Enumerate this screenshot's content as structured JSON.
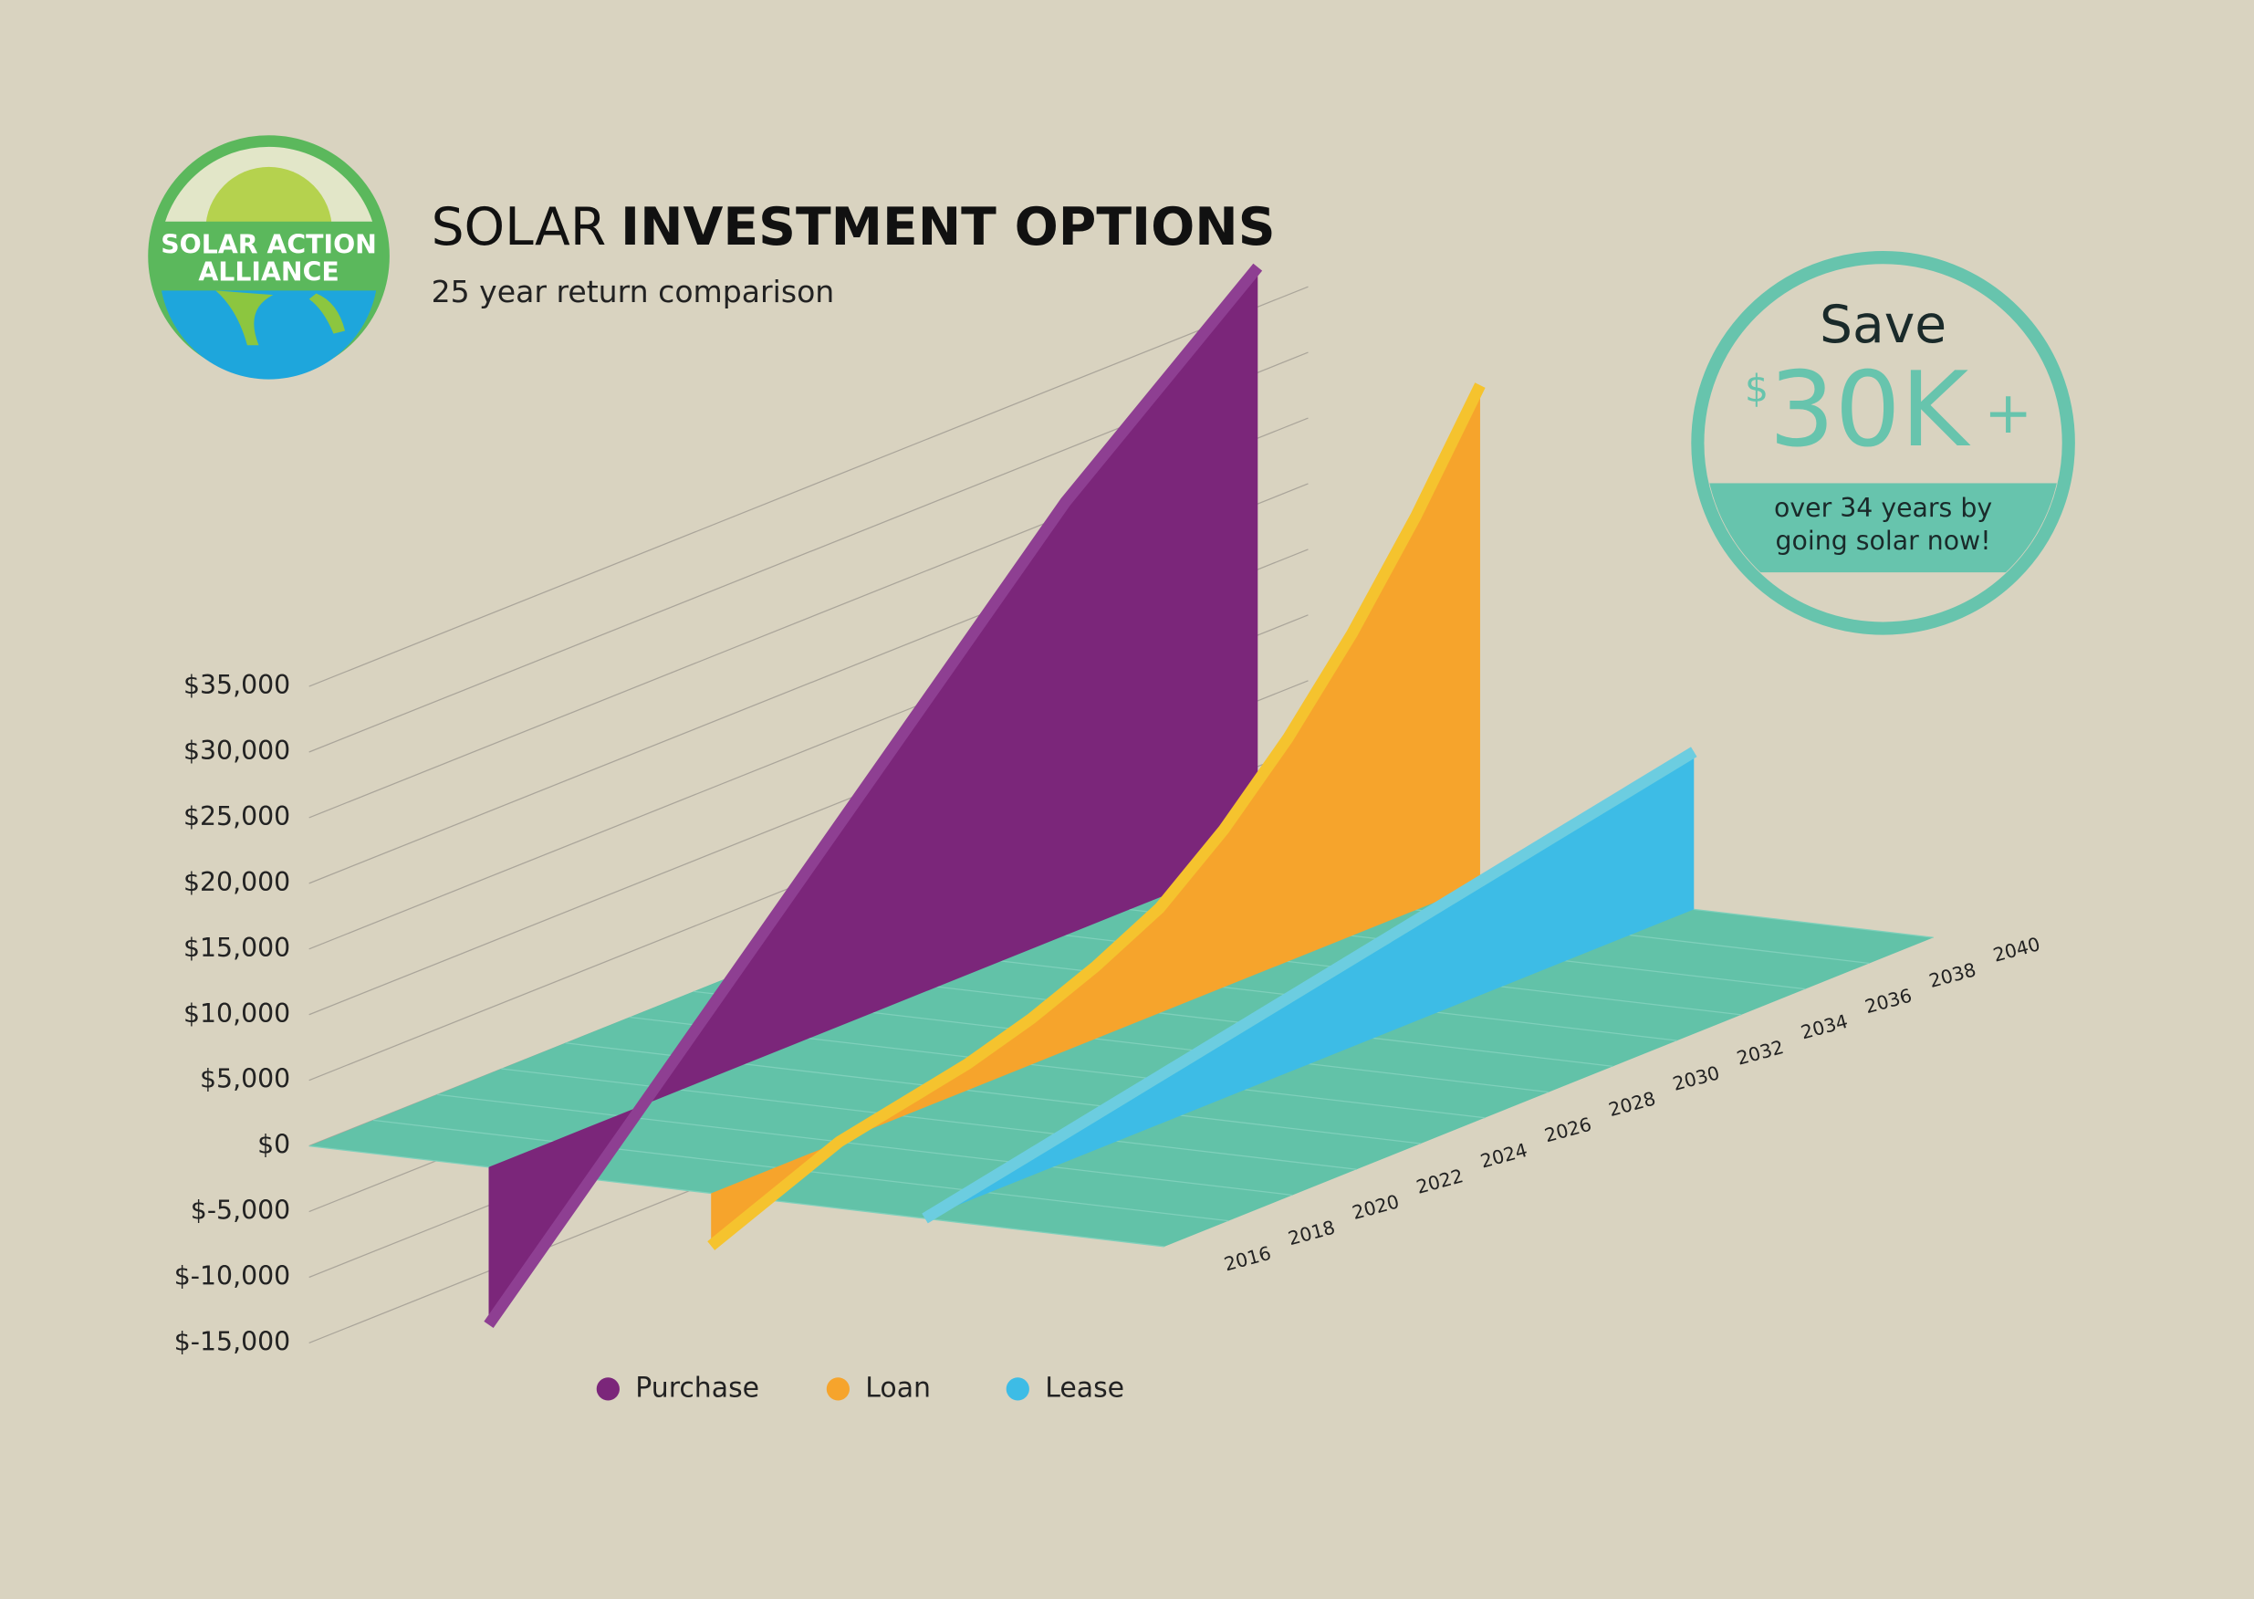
{
  "logo": {
    "lines": [
      "SOLAR ACTION",
      "ALLIANCE"
    ]
  },
  "chart_data": {
    "type": "area3d",
    "title_light": "SOLAR",
    "title": "INVESTMENT OPTIONS",
    "subtitle": "25 year return comparison",
    "x": [
      2016,
      2018,
      2020,
      2022,
      2024,
      2026,
      2028,
      2030,
      2032,
      2034,
      2036,
      2038,
      2040
    ],
    "xlim": [
      2016,
      2040
    ],
    "xticks": [
      2016,
      2018,
      2020,
      2022,
      2024,
      2026,
      2028,
      2030,
      2032,
      2034,
      2036,
      2038,
      2040
    ],
    "ylim": [
      -15000,
      35000
    ],
    "yticks": [
      {
        "value": -15000,
        "label": "$-15,000"
      },
      {
        "value": -10000,
        "label": "$-10,000"
      },
      {
        "value": -5000,
        "label": "$-5,000"
      },
      {
        "value": 0,
        "label": "$0"
      },
      {
        "value": 5000,
        "label": "$5,000"
      },
      {
        "value": 10000,
        "label": "$10,000"
      },
      {
        "value": 15000,
        "label": "$15,000"
      },
      {
        "value": 20000,
        "label": "$20,000"
      },
      {
        "value": 25000,
        "label": "$25,000"
      },
      {
        "value": 30000,
        "label": "$30,000"
      },
      {
        "value": 35000,
        "label": "$35,000"
      }
    ],
    "grid": true,
    "series": [
      {
        "name": "Purchase",
        "color": "#7b267a",
        "values": [
          -12000,
          -7000,
          -2000,
          3000,
          8000,
          13000,
          18000,
          23000,
          28000,
          33000,
          37000,
          41000,
          45000
        ]
      },
      {
        "name": "Loan",
        "color": "#f6a42c",
        "values": [
          -4000,
          -2000,
          0,
          1000,
          2000,
          3500,
          5500,
          8000,
          12000,
          17000,
          23000,
          30000,
          38000
        ]
      },
      {
        "name": "Lease",
        "color": "#3dbce6",
        "values": [
          0,
          1000,
          2000,
          3000,
          4000,
          5000,
          6000,
          7000,
          8000,
          9000,
          10000,
          11000,
          12000
        ]
      }
    ]
  },
  "badge": {
    "save": "Save",
    "currency": "$",
    "amount": "30K",
    "plus": "+",
    "note_lines": [
      "over 34 years by",
      "going solar now!"
    ]
  }
}
